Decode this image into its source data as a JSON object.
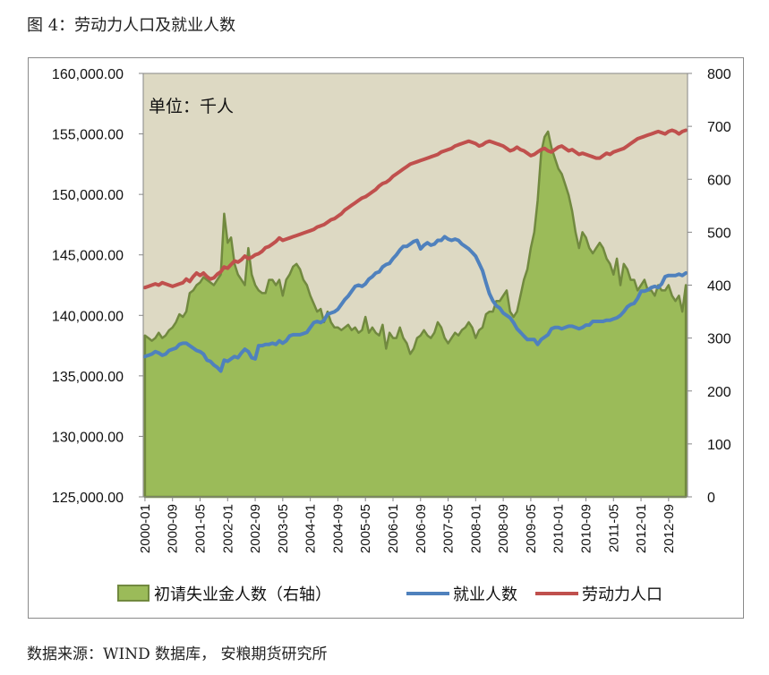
{
  "figure_title": "图 4：劳动力人口及就业人数",
  "source": "数据来源：WIND 数据库，  安粮期货研究所",
  "chart_data": {
    "type": "area+line",
    "unit_note": "单位：千人",
    "x_tick_labels": [
      "2000-01",
      "2000-09",
      "2001-05",
      "2002-01",
      "2002-09",
      "2003-05",
      "2004-01",
      "2004-09",
      "2005-05",
      "2006-01",
      "2006-09",
      "2007-05",
      "2008-01",
      "2008-09",
      "2009-05",
      "2010-01",
      "2010-09",
      "2011-05",
      "2012-01",
      "2012-09"
    ],
    "left_axis": {
      "ticks": [
        "125,000.00",
        "130,000.00",
        "135,000.00",
        "140,000.00",
        "145,000.00",
        "150,000.00",
        "155,000.00",
        "160,000.00"
      ],
      "ylim": [
        125000,
        160000
      ]
    },
    "right_axis": {
      "ticks": [
        "0",
        "100",
        "200",
        "300",
        "400",
        "500",
        "600",
        "700",
        "800"
      ],
      "ylim": [
        0,
        800
      ]
    },
    "legend": [
      "初请失业金人数（右轴）",
      "就业人数",
      "劳动力人口"
    ],
    "colors": {
      "claims_fill": "#9BBB59",
      "claims_line": "#71893F",
      "employment": "#4F81BD",
      "labor": "#C0504D",
      "plot_bg": "#DDD9C3"
    },
    "series": [
      {
        "name": "初请失业金人数（右轴）",
        "axis": "right",
        "start": "2000-01",
        "frequency": "monthly",
        "values": [
          305,
          300,
          295,
          300,
          310,
          300,
          305,
          315,
          320,
          330,
          345,
          340,
          350,
          385,
          390,
          400,
          405,
          415,
          410,
          405,
          400,
          410,
          420,
          535,
          480,
          490,
          440,
          420,
          410,
          400,
          470,
          420,
          400,
          390,
          385,
          385,
          410,
          410,
          400,
          410,
          380,
          410,
          420,
          435,
          440,
          430,
          410,
          400,
          380,
          365,
          350,
          355,
          330,
          350,
          330,
          320,
          320,
          315,
          320,
          325,
          315,
          320,
          310,
          315,
          340,
          310,
          320,
          310,
          305,
          325,
          280,
          310,
          300,
          300,
          320,
          300,
          290,
          270,
          280,
          300,
          305,
          315,
          305,
          300,
          310,
          330,
          320,
          300,
          290,
          300,
          310,
          305,
          315,
          320,
          330,
          320,
          300,
          315,
          320,
          345,
          350,
          350,
          370,
          370,
          380,
          390,
          350,
          340,
          350,
          380,
          410,
          430,
          470,
          500,
          560,
          650,
          680,
          690,
          660,
          640,
          620,
          610,
          590,
          570,
          540,
          500,
          470,
          500,
          490,
          470,
          460,
          470,
          480,
          470,
          450,
          440,
          420,
          450,
          400,
          440,
          430,
          410,
          410,
          390,
          400,
          410,
          390,
          390,
          380,
          400,
          390,
          390,
          400,
          380,
          370,
          380,
          350,
          400
        ]
      },
      {
        "name": "就业人数",
        "axis": "left",
        "start": "2000-01",
        "frequency": "monthly",
        "values": [
          136600,
          136700,
          136800,
          137000,
          136900,
          136700,
          136800,
          137100,
          137200,
          137300,
          137600,
          137700,
          137700,
          137500,
          137300,
          137100,
          137000,
          136800,
          136300,
          136200,
          135900,
          135700,
          135400,
          136300,
          136200,
          136400,
          136600,
          136500,
          136900,
          137200,
          137000,
          136500,
          136400,
          137500,
          137500,
          137600,
          137600,
          137700,
          137600,
          137900,
          137700,
          137900,
          138300,
          138400,
          138400,
          138400,
          138500,
          138600,
          139000,
          139400,
          139500,
          139400,
          139600,
          140100,
          140200,
          140300,
          140500,
          140900,
          141300,
          141600,
          142000,
          142400,
          142500,
          142400,
          142600,
          143000,
          143200,
          143500,
          143600,
          144000,
          144200,
          144300,
          144700,
          145000,
          145400,
          145700,
          145700,
          145900,
          146100,
          146200,
          145500,
          145800,
          146000,
          145800,
          145900,
          146200,
          146200,
          146500,
          146300,
          146200,
          146300,
          146200,
          145900,
          145700,
          145500,
          145200,
          144900,
          144300,
          143700,
          142700,
          141800,
          141200,
          140800,
          140600,
          140200,
          140000,
          139800,
          139400,
          138900,
          138600,
          138300,
          138000,
          138000,
          138000,
          137600,
          138000,
          138200,
          138400,
          138900,
          139000,
          139000,
          138900,
          139000,
          139100,
          139100,
          139000,
          138900,
          139000,
          139200,
          139200,
          139500,
          139500,
          139500,
          139500,
          139600,
          139600,
          139700,
          139800,
          140000,
          140300,
          140700,
          140900,
          141000,
          141400,
          142000,
          142000,
          142100,
          142300,
          142400,
          142300,
          142600,
          143200,
          143300,
          143300,
          143300,
          143400,
          143300,
          143500
        ]
      },
      {
        "name": "劳动力人口",
        "axis": "left",
        "start": "2000-01",
        "frequency": "monthly",
        "values": [
          142300,
          142400,
          142500,
          142600,
          142500,
          142700,
          142600,
          142500,
          142400,
          142500,
          142600,
          142700,
          143000,
          142800,
          143200,
          143500,
          143300,
          143500,
          143200,
          143000,
          143100,
          143400,
          143600,
          144000,
          143900,
          144200,
          144500,
          144400,
          144600,
          144900,
          144700,
          144800,
          145000,
          145100,
          145300,
          145600,
          145700,
          145900,
          146100,
          146400,
          146200,
          146300,
          146400,
          146500,
          146600,
          146700,
          146800,
          146900,
          147000,
          147100,
          147300,
          147400,
          147500,
          147700,
          147900,
          148000,
          148200,
          148400,
          148700,
          148900,
          149100,
          149300,
          149500,
          149700,
          149800,
          150000,
          150200,
          150400,
          150700,
          150900,
          151000,
          151200,
          151500,
          151700,
          151900,
          152100,
          152300,
          152500,
          152600,
          152700,
          152800,
          152900,
          153000,
          153100,
          153200,
          153300,
          153500,
          153600,
          153700,
          153800,
          154000,
          154100,
          154200,
          154300,
          154400,
          154300,
          154200,
          154000,
          154100,
          154300,
          154400,
          154300,
          154200,
          154100,
          154000,
          153800,
          153600,
          153700,
          153900,
          153700,
          153600,
          153400,
          153200,
          153300,
          153500,
          153700,
          153800,
          153600,
          153500,
          153700,
          153900,
          154000,
          153800,
          153600,
          153700,
          153500,
          153300,
          153400,
          153300,
          153200,
          153100,
          153000,
          153000,
          153200,
          153400,
          153300,
          153500,
          153600,
          153700,
          153800,
          154000,
          154200,
          154400,
          154600,
          154700,
          154800,
          154900,
          155000,
          155100,
          155200,
          155100,
          155000,
          155200,
          155300,
          155200,
          155000,
          155200,
          155300
        ]
      }
    ]
  }
}
